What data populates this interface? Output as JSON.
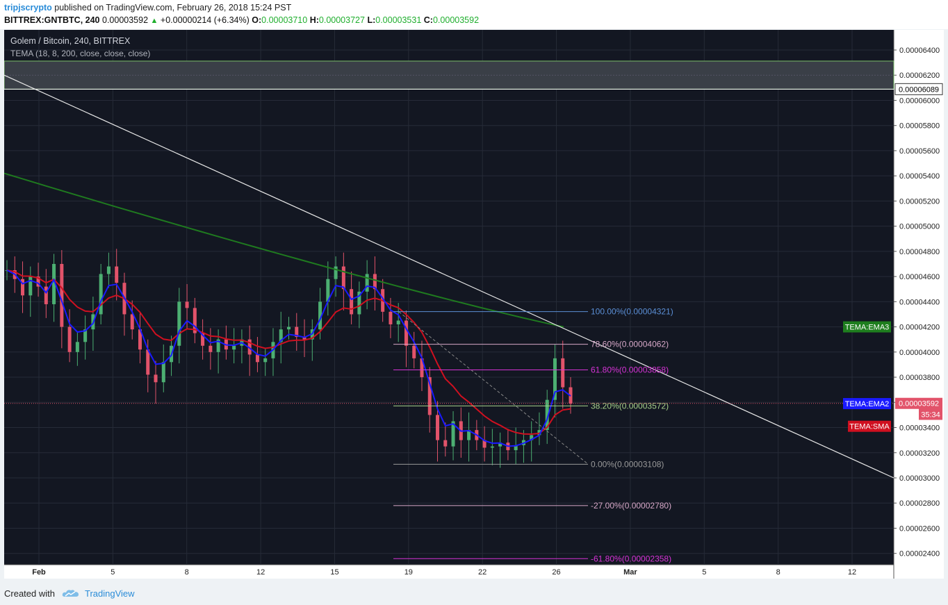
{
  "header": {
    "author": "tripjscrypto",
    "published_text": "published on TradingView.com, February 26, 2018 15:24 PST",
    "symbol": "BITTREX:GNTBTC, 240",
    "last": "0.00003592",
    "change": "+0.00000214 (+6.34%)",
    "o_label": "O:",
    "o_value": "0.00003710",
    "h_label": "H:",
    "h_value": "0.00003727",
    "l_label": "L:",
    "l_value": "0.00003531",
    "c_label": "C:",
    "c_value": "0.00003592"
  },
  "legend": {
    "title": "Golem / Bitcoin, 240, BITTREX",
    "indicator": "TEMA (18, 8, 200, close, close, close)"
  },
  "footer": {
    "created_with": "Created with",
    "brand": "TradingView"
  },
  "colors": {
    "background": "#131722",
    "grid": "#262b38",
    "up": "#4caf72",
    "down": "#e2536a",
    "ema_blue": "#1a1aff",
    "ema_red": "#d01020",
    "ema_green": "#1f7a1f"
  },
  "chart_data": {
    "type": "candlestick",
    "y_ticks": [
      "0.00002400",
      "0.00002600",
      "0.00002800",
      "0.00003000",
      "0.00003200",
      "0.00003400",
      "0.00003600",
      "0.00003800",
      "0.00004000",
      "0.00004200",
      "0.00004400",
      "0.00004600",
      "0.00004800",
      "0.00005000",
      "0.00005200",
      "0.00005400",
      "0.00005600",
      "0.00005800",
      "0.00006000",
      "0.00006200",
      "0.00006400"
    ],
    "ylim": [
      2.31e-05,
      6.56e-05
    ],
    "x_ticks": [
      "Feb",
      "5",
      "8",
      "12",
      "15",
      "19",
      "22",
      "26",
      "Mar",
      "5",
      "8",
      "12"
    ],
    "price_labels": [
      {
        "text": "0.00006089",
        "value": 6.089e-05,
        "color": "#ffffff",
        "text_color": "#000000"
      },
      {
        "text": "0.00003592",
        "value": 3.592e-05,
        "color": "#e2536a",
        "text_color": "#ffffff"
      },
      {
        "text": "35:34",
        "value": 3.505e-05,
        "color": "#e2536a",
        "text_color": "#ffffff"
      }
    ],
    "badges": [
      {
        "text": "TEMA:EMA3",
        "value": 4.2e-05,
        "color": "#1e7e1e"
      },
      {
        "text": "TEMA:EMA2",
        "value": 3.59e-05,
        "color": "#1a1aff"
      },
      {
        "text": "TEMA:SMA",
        "value": 3.41e-05,
        "color": "#d01020"
      }
    ],
    "resistance_zone": [
      6.089e-05,
      6.312e-05
    ],
    "fibonacci": [
      {
        "label": "100.00%(0.00004321)",
        "value": 4.321e-05,
        "color": "#5b8fd6"
      },
      {
        "label": "78.60%(0.00004062)",
        "value": 4.062e-05,
        "color": "#d7a8c8"
      },
      {
        "label": "61.80%(0.00003858)",
        "value": 3.858e-05,
        "color": "#d633d6"
      },
      {
        "label": "38.20%(0.00003572)",
        "value": 3.572e-05,
        "color": "#a6d28a"
      },
      {
        "label": "0.00%(0.00003108)",
        "value": 3.108e-05,
        "color": "#9a9a9a"
      },
      {
        "label": "-27.00%(0.00002780)",
        "value": 2.78e-05,
        "color": "#d7a8c8"
      },
      {
        "label": "-61.80%(0.00002358)",
        "value": 2.358e-05,
        "color": "#d633d6"
      }
    ],
    "close_series": [
      4.65e-05,
      4.58e-05,
      4.45e-05,
      4.6e-05,
      4.52e-05,
      4.38e-05,
      4.7e-05,
      4.2e-05,
      4e-05,
      4.08e-05,
      4.18e-05,
      4.3e-05,
      4.62e-05,
      4.68e-05,
      4.55e-05,
      4.3e-05,
      4.18e-05,
      4.02e-05,
      3.82e-05,
      3.76e-05,
      3.92e-05,
      4.05e-05,
      4.4e-05,
      4.35e-05,
      4.15e-05,
      4.05e-05,
      4e-05,
      4.1e-05,
      4.02e-05,
      4.05e-05,
      4.1e-05,
      3.98e-05,
      3.92e-05,
      3.95e-05,
      4.08e-05,
      4.18e-05,
      4.2e-05,
      4.12e-05,
      4.1e-05,
      4.18e-05,
      4.4e-05,
      4.58e-05,
      4.68e-05,
      4.5e-05,
      4.3e-05,
      4.48e-05,
      4.62e-05,
      4.5e-05,
      4.32e-05,
      4.22e-05,
      4.25e-05,
      4.05e-05,
      3.95e-05,
      3.8e-05,
      3.5e-05,
      3.3e-05,
      3.25e-05,
      3.45e-05,
      3.3e-05,
      3.38e-05,
      3.3e-05,
      3.24e-05,
      3.25e-05,
      3.28e-05,
      3.22e-05,
      3.26e-05,
      3.3e-05,
      3.34e-05,
      3.38e-05,
      3.62e-05,
      3.95e-05,
      3.72e-05,
      3.59e-05
    ]
  }
}
